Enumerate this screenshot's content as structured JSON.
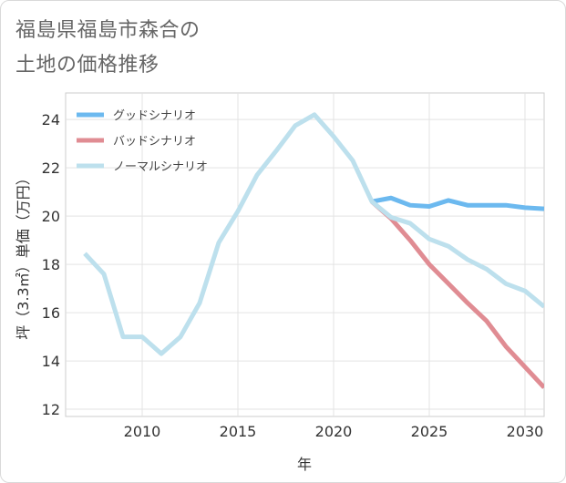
{
  "title_lines": [
    "福島県福島市森合の",
    "土地の価格推移"
  ],
  "chart_data": {
    "type": "line",
    "xlabel": "年",
    "ylabel": "坪（3.3㎡）単価（万円）",
    "xlim": [
      2006,
      2031
    ],
    "ylim": [
      11.7,
      25.1
    ],
    "x_ticks": [
      2010,
      2015,
      2020,
      2025,
      2030
    ],
    "y_ticks": [
      12,
      14,
      16,
      18,
      20,
      22,
      24
    ],
    "legend_position": "top-left",
    "series": [
      {
        "name": "グッドシナリオ",
        "color": "#6cb9ef",
        "x": [
          2022,
          2023,
          2024,
          2025,
          2026,
          2027,
          2028,
          2029,
          2030,
          2031
        ],
        "values": [
          20.6,
          20.75,
          20.45,
          20.4,
          20.65,
          20.45,
          20.45,
          20.45,
          20.35,
          20.3
        ]
      },
      {
        "name": "バッドシナリオ",
        "color": "#e08c93",
        "x": [
          2022,
          2023,
          2024,
          2025,
          2026,
          2027,
          2028,
          2029,
          2030,
          2031
        ],
        "values": [
          20.6,
          19.9,
          19.0,
          18.0,
          17.2,
          16.4,
          15.65,
          14.6,
          13.75,
          12.9
        ]
      },
      {
        "name": "ノーマルシナリオ",
        "color": "#bde0ed",
        "x": [
          2007,
          2008,
          2009,
          2010,
          2011,
          2012,
          2013,
          2014,
          2015,
          2016,
          2017,
          2018,
          2019,
          2020,
          2021,
          2022,
          2023,
          2024,
          2025,
          2026,
          2027,
          2028,
          2029,
          2030,
          2031
        ],
        "values": [
          18.45,
          17.6,
          15.0,
          15.0,
          14.3,
          15.0,
          16.4,
          18.9,
          20.2,
          21.7,
          22.7,
          23.75,
          24.2,
          23.3,
          22.3,
          20.6,
          19.95,
          19.7,
          19.05,
          18.75,
          18.2,
          17.8,
          17.2,
          16.9,
          16.25
        ]
      }
    ]
  }
}
